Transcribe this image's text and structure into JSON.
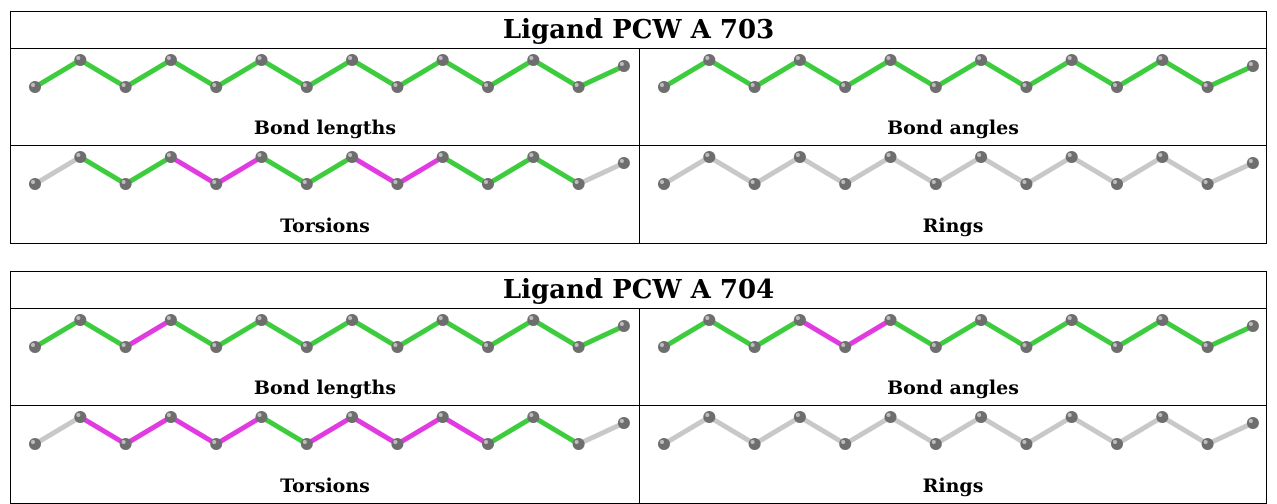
{
  "colors": {
    "ok": "#3dcc3d",
    "outlier": "#e03ae0",
    "none": "#c8c8c8",
    "atom": "#6e6e6e"
  },
  "panels": [
    {
      "title": "Ligand PCW A 703",
      "cells": [
        {
          "label": "Bond lengths",
          "bonds": [
            "ok",
            "ok",
            "ok",
            "ok",
            "ok",
            "ok",
            "ok",
            "ok",
            "ok",
            "ok",
            "ok",
            "ok",
            "ok"
          ]
        },
        {
          "label": "Bond angles",
          "bonds": [
            "ok",
            "ok",
            "ok",
            "ok",
            "ok",
            "ok",
            "ok",
            "ok",
            "ok",
            "ok",
            "ok",
            "ok",
            "ok"
          ]
        },
        {
          "label": "Torsions",
          "bonds": [
            "none",
            "ok",
            "ok",
            "outlier",
            "outlier",
            "ok",
            "ok",
            "outlier",
            "outlier",
            "ok",
            "ok",
            "ok",
            "none"
          ]
        },
        {
          "label": "Rings",
          "bonds": [
            "none",
            "none",
            "none",
            "none",
            "none",
            "none",
            "none",
            "none",
            "none",
            "none",
            "none",
            "none",
            "none"
          ]
        }
      ]
    },
    {
      "title": "Ligand PCW A 704",
      "cells": [
        {
          "label": "Bond lengths",
          "bonds": [
            "ok",
            "ok",
            "outlier",
            "ok",
            "ok",
            "ok",
            "ok",
            "ok",
            "ok",
            "ok",
            "ok",
            "ok",
            "ok"
          ]
        },
        {
          "label": "Bond angles",
          "bonds": [
            "ok",
            "ok",
            "ok",
            "outlier",
            "outlier",
            "ok",
            "ok",
            "ok",
            "ok",
            "ok",
            "ok",
            "ok",
            "ok"
          ]
        },
        {
          "label": "Torsions",
          "bonds": [
            "none",
            "outlier",
            "outlier",
            "outlier",
            "outlier",
            "ok",
            "outlier",
            "outlier",
            "outlier",
            "outlier",
            "ok",
            "ok",
            "none"
          ]
        },
        {
          "label": "Rings",
          "bonds": [
            "none",
            "none",
            "none",
            "none",
            "none",
            "none",
            "none",
            "none",
            "none",
            "none",
            "none",
            "none",
            "none"
          ]
        }
      ]
    }
  ]
}
